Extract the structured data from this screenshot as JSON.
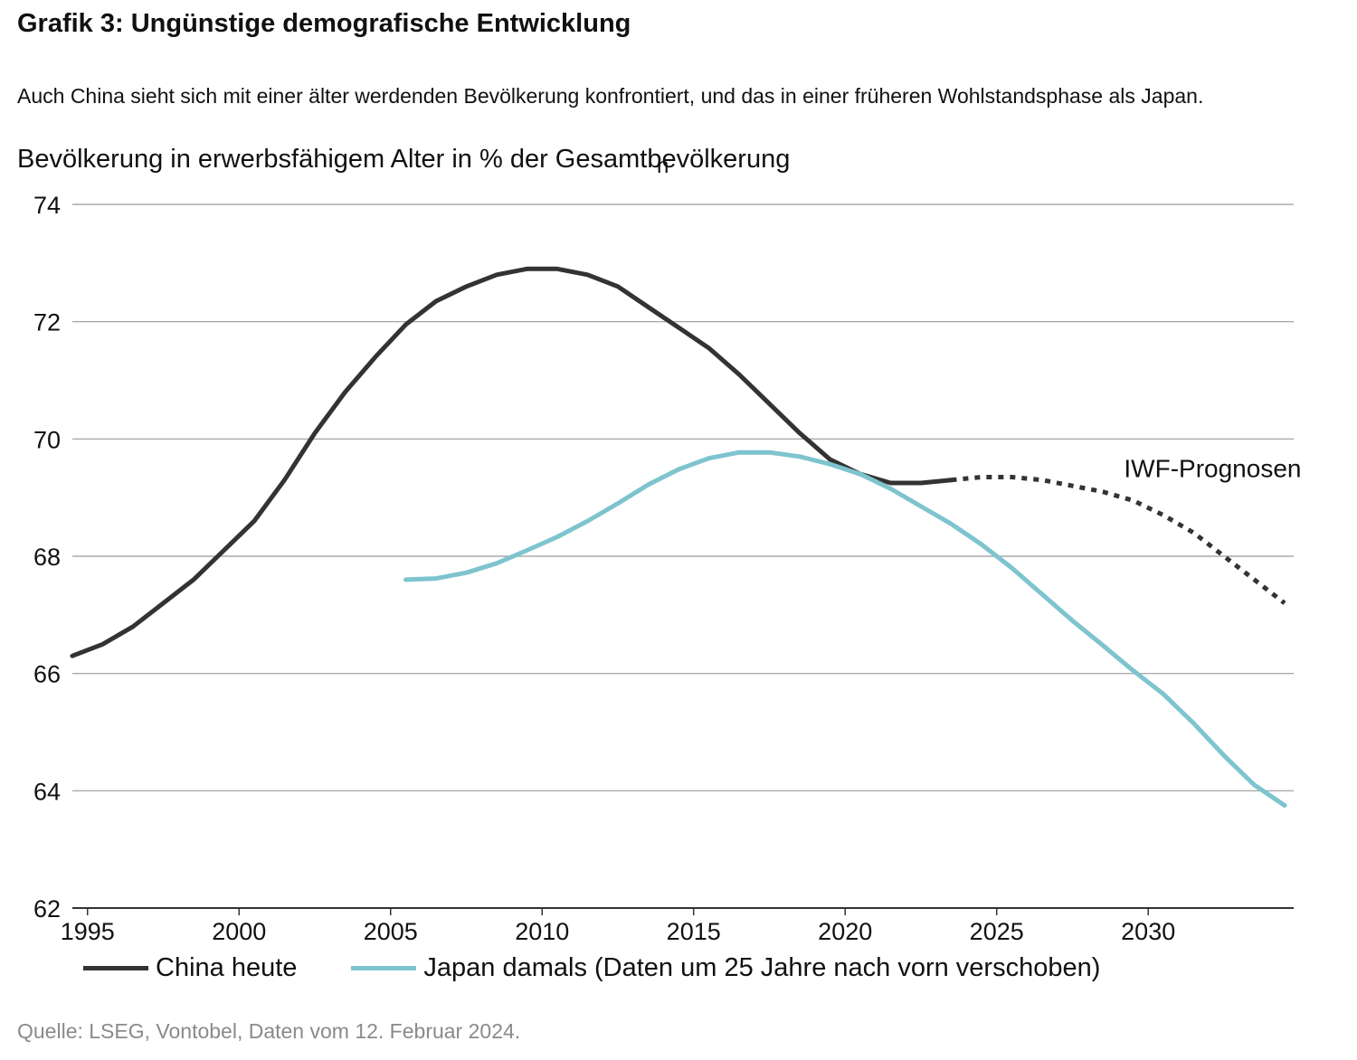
{
  "header": {
    "title": "Grafik 3: Ungünstige demografische Entwicklung",
    "subtitle": "Auch China sieht sich mit einer älter werdenden Bevölkerung konfrontiert, und das in einer früheren Wohlstandsphase als Japan.",
    "ylabel": "Bevölkerung in erwerbsfähigem Alter in % der Gesamtbevölkerung",
    "ylabel_stray": "n"
  },
  "source": "Quelle: LSEG, Vontobel, Daten vom 12. Februar 2024.",
  "colors": {
    "china": "#333333",
    "japan": "#7ec4cf",
    "grid": "#9a9a9a",
    "axis": "#333333"
  },
  "chart_data": {
    "type": "line",
    "title": "",
    "xlabel": "",
    "ylabel": "Bevölkerung in erwerbsfähigem Alter in % der Gesamtbevölkerung",
    "xlim": [
      1994.5,
      2034.8
    ],
    "ylim": [
      62,
      74
    ],
    "grid": true,
    "legend_position": "bottom",
    "x_ticks": [
      {
        "value": 1995,
        "label": "1995"
      },
      {
        "value": 2000,
        "label": "2000"
      },
      {
        "value": 2005,
        "label": "2005"
      },
      {
        "value": 2010,
        "label": "2010"
      },
      {
        "value": 2015,
        "label": "2015"
      },
      {
        "value": 2020,
        "label": "2020"
      },
      {
        "value": 2025,
        "label": "2025"
      },
      {
        "value": 2030,
        "label": "2030"
      }
    ],
    "y_ticks": [
      {
        "value": 62,
        "label": "62"
      },
      {
        "value": 64,
        "label": "64"
      },
      {
        "value": 66,
        "label": "66"
      },
      {
        "value": 68,
        "label": "68"
      },
      {
        "value": 70,
        "label": "70"
      },
      {
        "value": 72,
        "label": "72"
      },
      {
        "value": 74,
        "label": "74"
      }
    ],
    "series": [
      {
        "name": "China heute",
        "color": "#333333",
        "style": "solid",
        "x": [
          1994.5,
          1995.5,
          1996.5,
          1997.5,
          1998.5,
          1999.5,
          2000.5,
          2001.5,
          2002.5,
          2003.5,
          2004.5,
          2005.5,
          2006.5,
          2007.5,
          2008.5,
          2009.5,
          2010.5,
          2011.5,
          2012.5,
          2013.5,
          2014.5,
          2015.5,
          2016.5,
          2017.5,
          2018.5,
          2019.5,
          2020.5,
          2021.5,
          2022.5,
          2023.5
        ],
        "y": [
          66.3,
          66.5,
          66.8,
          67.2,
          67.6,
          68.1,
          68.6,
          69.3,
          70.1,
          70.8,
          71.4,
          71.95,
          72.35,
          72.6,
          72.8,
          72.9,
          72.9,
          72.8,
          72.6,
          72.25,
          71.9,
          71.55,
          71.1,
          70.6,
          70.1,
          69.65,
          69.4,
          69.25,
          69.25,
          69.3
        ]
      },
      {
        "name": "IWF-Prognosen",
        "color": "#333333",
        "style": "dotted",
        "x": [
          2023.5,
          2024.5,
          2025.5,
          2026.5,
          2027.5,
          2028.5,
          2029.5,
          2030.5,
          2031.5,
          2032.5,
          2033.5,
          2034.5
        ],
        "y": [
          69.3,
          69.35,
          69.35,
          69.3,
          69.2,
          69.1,
          68.95,
          68.7,
          68.4,
          68.0,
          67.6,
          67.2
        ]
      },
      {
        "name": "Japan damals (Daten um 25 Jahre nach vorn verschoben)",
        "color": "#7ec4cf",
        "style": "solid",
        "x": [
          2005.5,
          2006.5,
          2007.5,
          2008.5,
          2009.5,
          2010.5,
          2011.5,
          2012.5,
          2013.5,
          2014.5,
          2015.5,
          2016.5,
          2017.5,
          2018.5,
          2019.5,
          2020.5,
          2021.5,
          2022.5,
          2023.5,
          2024.5,
          2025.5,
          2026.5,
          2027.5,
          2028.5,
          2029.5,
          2030.5,
          2031.5,
          2032.5,
          2033.5,
          2034.5
        ],
        "y": [
          67.6,
          67.62,
          67.72,
          67.88,
          68.1,
          68.33,
          68.6,
          68.9,
          69.22,
          69.48,
          69.67,
          69.77,
          69.77,
          69.7,
          69.57,
          69.4,
          69.15,
          68.85,
          68.55,
          68.2,
          67.8,
          67.35,
          66.9,
          66.48,
          66.05,
          65.65,
          65.15,
          64.6,
          64.1,
          63.75
        ]
      }
    ],
    "annotations": [
      {
        "text": "IWF-Prognosen",
        "x": 2029.2,
        "y": 69.35
      }
    ]
  },
  "legend": [
    {
      "label": "China heute",
      "color": "#333333"
    },
    {
      "label": "Japan damals (Daten um 25 Jahre nach vorn verschoben)",
      "color": "#7ec4cf"
    }
  ]
}
